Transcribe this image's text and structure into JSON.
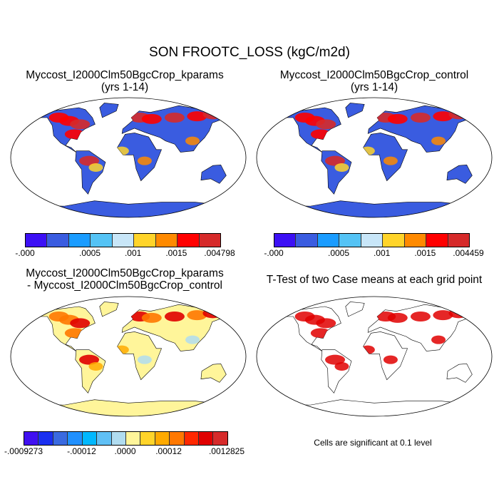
{
  "title": "SON FROOTC_LOSS (kgC/m2d)",
  "panels": [
    {
      "title1": "Myccost_I2000Clm50BgcCrop_kparams",
      "title2": "(yrs 1-14)",
      "land_color": "#3a5ce0",
      "hot_colors": [
        "#ff0000",
        "#d62a2a",
        "#ff8a00",
        "#ffd42a"
      ],
      "colorbar": {
        "colors": [
          "#3c10f5",
          "#3a5ce0",
          "#1a9cff",
          "#55c3f5",
          "#c8e6f8",
          "#ffd42a",
          "#ff8a00",
          "#ff0000",
          "#d62a2a"
        ],
        "labels": [
          "-.000",
          ".0005",
          ".001",
          ".0015",
          ".004798"
        ]
      }
    },
    {
      "title1": "Myccost_I2000Clm50BgcCrop_control",
      "title2": "(yrs 1-14)",
      "land_color": "#3a5ce0",
      "hot_colors": [
        "#ff0000",
        "#d62a2a",
        "#ff8a00",
        "#ffd42a"
      ],
      "colorbar": {
        "colors": [
          "#3c10f5",
          "#3a5ce0",
          "#1a9cff",
          "#55c3f5",
          "#c8e6f8",
          "#ffd42a",
          "#ff8a00",
          "#ff0000",
          "#d62a2a"
        ],
        "labels": [
          "-.000",
          ".0005",
          ".001",
          ".0015",
          ".004459"
        ]
      }
    },
    {
      "title1": "Myccost_I2000Clm50BgcCrop_kparams",
      "title2": "- Myccost_I2000Clm50BgcCrop_control",
      "land_color": "#fff59a",
      "hot_colors": [
        "#ff7800",
        "#e00000",
        "#b0dcf0",
        "#ffaa00"
      ],
      "colorbar": {
        "colors": [
          "#4010f0",
          "#1a30f0",
          "#3a6ae0",
          "#2090ff",
          "#00b8ff",
          "#60c0f5",
          "#b0dcf0",
          "#fff59a",
          "#ffd42a",
          "#ffaa00",
          "#ff7800",
          "#ff2800",
          "#e00000",
          "#d62a2a"
        ],
        "labels": [
          "-.0009273",
          "-.00012",
          ".0000",
          ".00012",
          ".0012825"
        ]
      }
    },
    {
      "title1": "T-Test of two Case means at each grid point",
      "title2": "",
      "land_color": "#ffffff",
      "hot_colors": [
        "#e00000",
        "#e00000",
        "#e00000",
        "#e00000"
      ],
      "note": "Cells are significant at 0.1 level"
    }
  ]
}
